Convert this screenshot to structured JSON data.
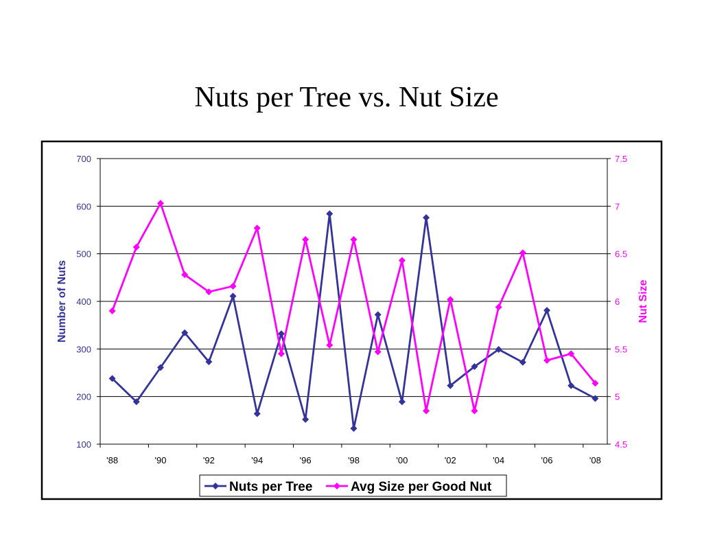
{
  "title": "Nuts per Tree vs. Nut Size",
  "chart_data": {
    "type": "line",
    "title": "Nuts per Tree vs. Nut Size",
    "categories": [
      "'88",
      "'89",
      "'90",
      "'91",
      "'92",
      "'93",
      "'94",
      "'95",
      "'96",
      "'97",
      "'98",
      "'99",
      "'00",
      "'01",
      "'02",
      "'03",
      "'04",
      "'05",
      "'06",
      "'07",
      "'08"
    ],
    "x_tick_labels": [
      "'88",
      "'90",
      "'92",
      "'94",
      "'96",
      "'98",
      "'00",
      "'02",
      "'04",
      "'06",
      "'08"
    ],
    "y_left": {
      "label": "Number of Nuts",
      "min": 100,
      "max": 700,
      "ticks": [
        "100",
        "200",
        "300",
        "400",
        "500",
        "600",
        "700"
      ],
      "color": "#333399"
    },
    "y_right": {
      "label": "Nut Size",
      "min": 4.5,
      "max": 7.5,
      "ticks": [
        "4.5",
        "5",
        "5.5",
        "6",
        "6.5",
        "7",
        "7.5"
      ],
      "color": "#ff00ff"
    },
    "grid": true,
    "legend_position": "bottom",
    "series": [
      {
        "name": "Nuts per Tree",
        "axis": "left",
        "color": "#333399",
        "values": [
          238,
          189,
          261,
          334,
          273,
          411,
          164,
          332,
          152,
          584,
          133,
          372,
          189,
          576,
          223,
          263,
          299,
          272,
          381,
          223,
          196
        ]
      },
      {
        "name": "Avg Size per Good Nut",
        "axis": "right",
        "color": "#ff00ff",
        "values": [
          5.9,
          6.57,
          7.03,
          6.28,
          6.1,
          6.16,
          6.77,
          5.45,
          6.65,
          5.54,
          6.65,
          5.47,
          6.43,
          4.85,
          6.02,
          4.85,
          5.94,
          6.51,
          5.38,
          5.45,
          5.14
        ]
      }
    ]
  }
}
